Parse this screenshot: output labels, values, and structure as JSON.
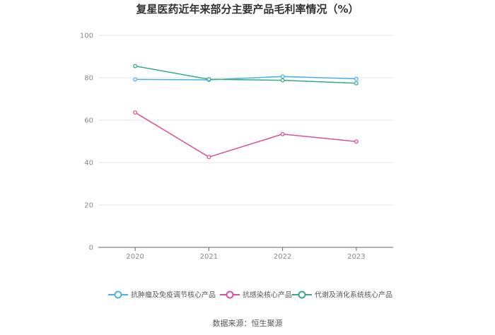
{
  "chart_data": {
    "type": "line",
    "title": "复星医药近年来部分主要产品毛利率情况（%）",
    "categories": [
      "2020",
      "2021",
      "2022",
      "2023"
    ],
    "ylim": [
      0,
      100
    ],
    "yticks": [
      0,
      20,
      40,
      60,
      80,
      100
    ],
    "grid": true,
    "legend_position": "bottom",
    "series": [
      {
        "name": "抗肿瘤及免疫调节核心产品",
        "color": "#4db1e6",
        "values": [
          79.2,
          79.0,
          80.6,
          79.5
        ]
      },
      {
        "name": "抗感染核心产品",
        "color": "#d9509b",
        "values": [
          63.6,
          42.6,
          53.4,
          49.9
        ]
      },
      {
        "name": "代谢及消化系统核心产品",
        "color": "#3aa889",
        "values": [
          85.5,
          79.3,
          78.8,
          77.4
        ]
      }
    ],
    "source": "数据来源：恒生聚源"
  }
}
